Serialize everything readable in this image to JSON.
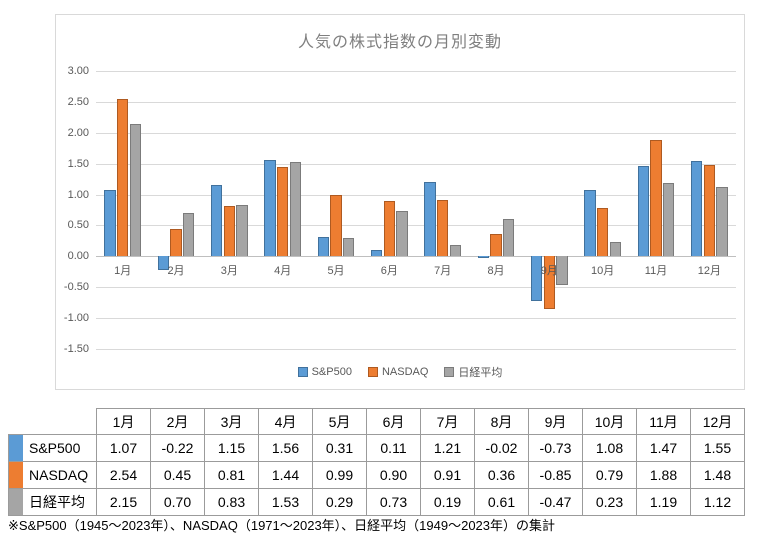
{
  "chart_data": {
    "type": "bar",
    "title": "人気の株式指数の月別変動",
    "categories": [
      "1月",
      "2月",
      "3月",
      "4月",
      "5月",
      "6月",
      "7月",
      "8月",
      "9月",
      "10月",
      "11月",
      "12月"
    ],
    "series": [
      {
        "name": "S&P500",
        "color": "#5B9BD5",
        "border_color": "#41719C",
        "values": [
          1.07,
          -0.22,
          1.15,
          1.56,
          0.31,
          0.11,
          1.21,
          -0.02,
          -0.73,
          1.08,
          1.47,
          1.55
        ]
      },
      {
        "name": "NASDAQ",
        "color": "#ED7D31",
        "border_color": "#AE5A21",
        "values": [
          2.54,
          0.45,
          0.81,
          1.44,
          0.99,
          0.9,
          0.91,
          0.36,
          -0.85,
          0.79,
          1.88,
          1.48
        ]
      },
      {
        "name": "日経平均",
        "color": "#A5A5A5",
        "border_color": "#7B7B7B",
        "values": [
          2.15,
          0.7,
          0.83,
          1.53,
          0.29,
          0.73,
          0.19,
          0.61,
          -0.47,
          0.23,
          1.19,
          1.12
        ]
      }
    ],
    "ylim": [
      -1.5,
      3.0
    ],
    "ytick_step": 0.5,
    "ytick_decimals": 2,
    "grid": true,
    "legend_position": "bottom"
  },
  "table": {
    "value_decimals": 2
  },
  "footnote": "※S&P500（1945～2023年）、NASDAQ（1971～2023年）、日経平均（1949～2023年）の集計"
}
